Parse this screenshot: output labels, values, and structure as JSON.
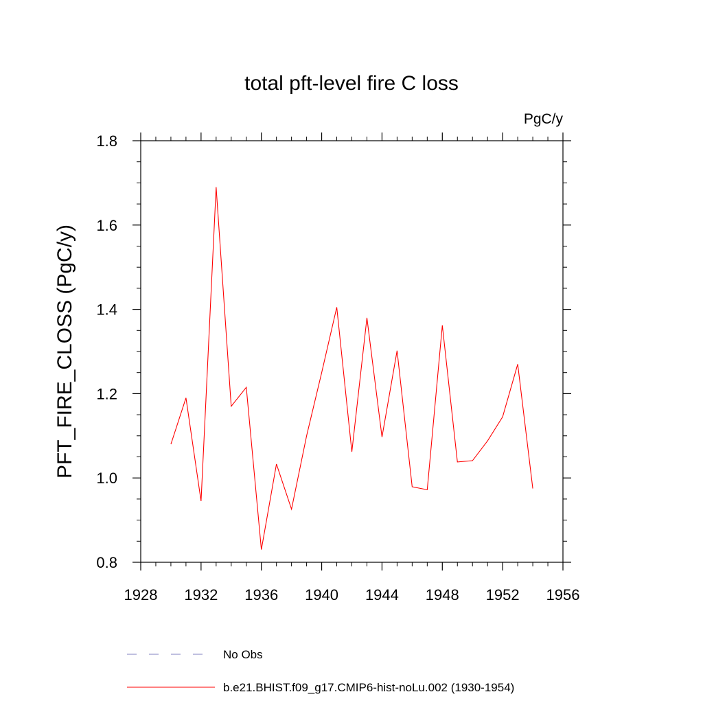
{
  "chart_data": {
    "type": "line",
    "title": "total pft-level fire C loss",
    "units_label": "PgC/y",
    "xlabel": "",
    "ylabel": "PFT_FIRE_CLOSS  (PgC/y)",
    "xlim": [
      1928,
      1956
    ],
    "ylim": [
      0.8,
      1.8
    ],
    "x_ticks": [
      1928,
      1932,
      1936,
      1940,
      1944,
      1948,
      1952,
      1956
    ],
    "x_tick_labels": [
      "1928",
      "1932",
      "1936",
      "1940",
      "1944",
      "1948",
      "1952",
      "1956"
    ],
    "y_ticks": [
      0.8,
      1.0,
      1.2,
      1.4,
      1.6,
      1.8
    ],
    "y_tick_labels": [
      "0.8",
      "1.0",
      "1.2",
      "1.4",
      "1.6",
      "1.8"
    ],
    "grid": false,
    "legend_position": "bottom",
    "series": [
      {
        "name": "b.e21.BHIST.f09_g17.CMIP6-hist-noLu.002 (1930-1954)",
        "color": "#ff0000",
        "style": "solid",
        "x": [
          1930,
          1931,
          1932,
          1933,
          1934,
          1935,
          1936,
          1937,
          1938,
          1939,
          1940,
          1941,
          1942,
          1943,
          1944,
          1945,
          1946,
          1947,
          1948,
          1949,
          1950,
          1951,
          1952,
          1953,
          1954
        ],
        "y": [
          1.08,
          1.19,
          0.945,
          1.69,
          1.17,
          1.215,
          0.83,
          1.033,
          0.926,
          1.1,
          1.25,
          1.405,
          1.062,
          1.38,
          1.097,
          1.302,
          0.979,
          0.972,
          1.362,
          1.038,
          1.041,
          1.088,
          1.145,
          1.27,
          0.975
        ]
      }
    ],
    "legend": [
      {
        "label": "No Obs",
        "color": "#8080c0",
        "style": "dashed"
      },
      {
        "label": "b.e21.BHIST.f09_g17.CMIP6-hist-noLu.002 (1930-1954)",
        "color": "#ff0000",
        "style": "solid"
      }
    ]
  }
}
